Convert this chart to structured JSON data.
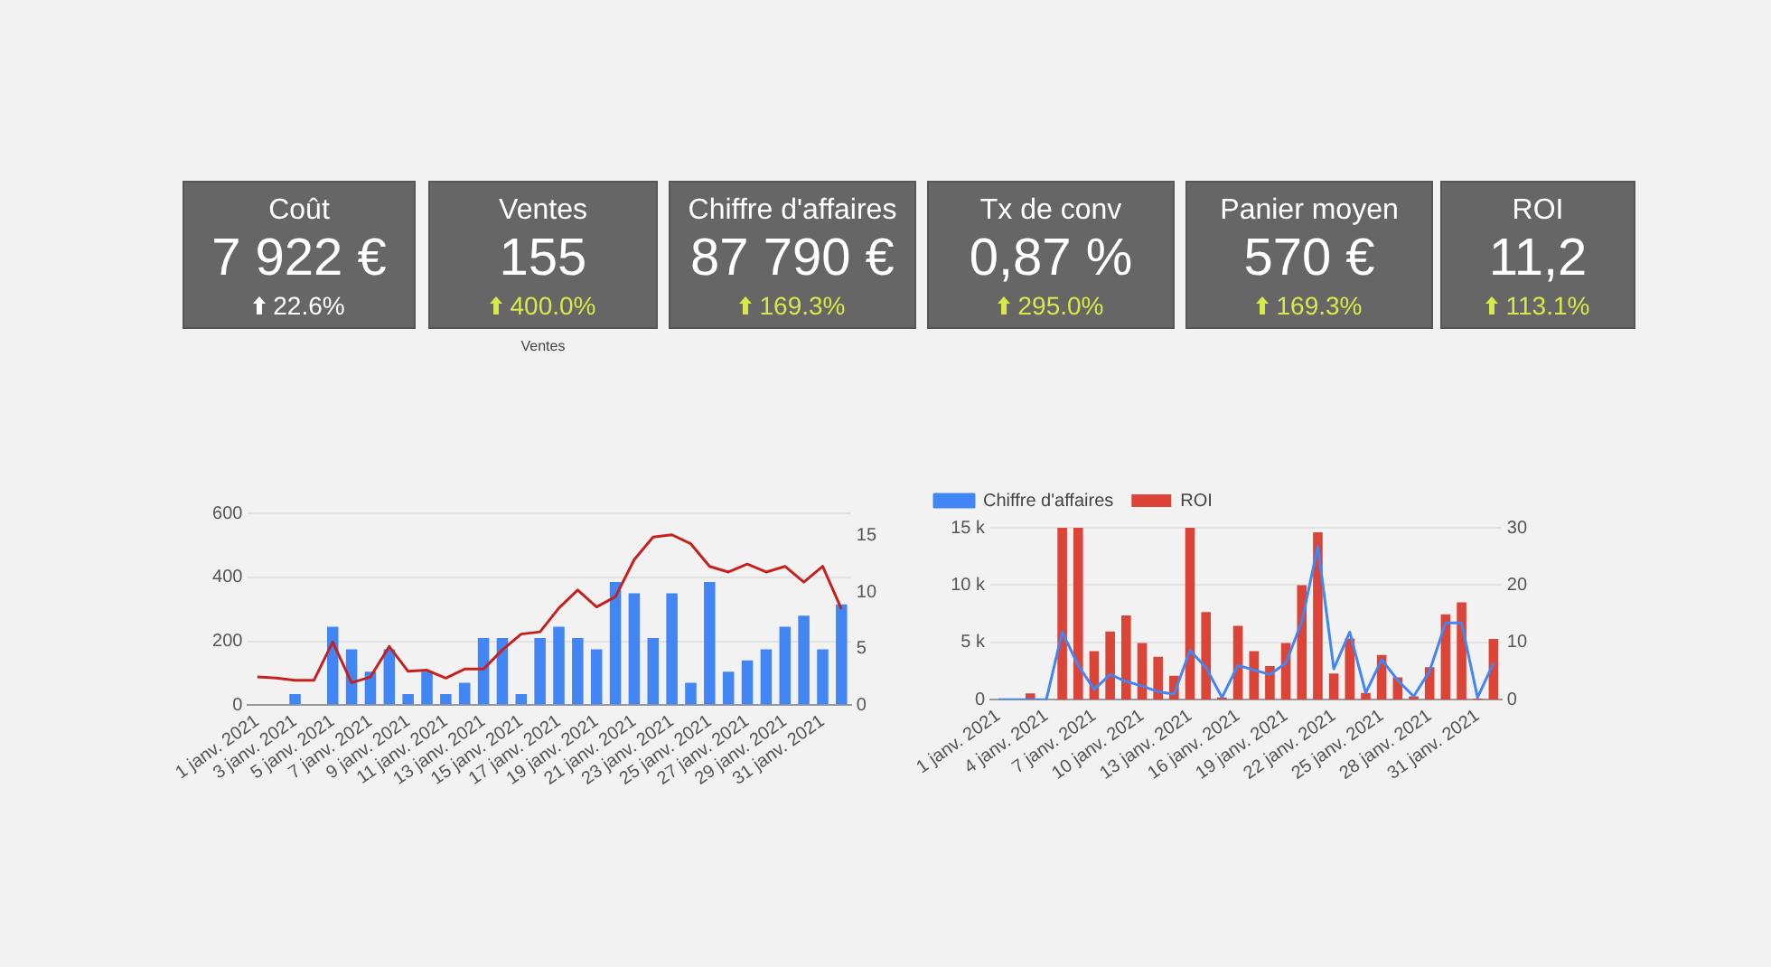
{
  "chart_data": [
    {
      "type": "other",
      "title": "Coût",
      "annotations": [
        "7 922 €",
        "22.6%"
      ],
      "color": "#ffffff"
    },
    {
      "type": "other",
      "title": "Ventes",
      "annotations": [
        "155",
        "400.0%",
        "Ventes"
      ],
      "color": "#d7e84a"
    },
    {
      "type": "other",
      "title": "Chiffre d'affaires",
      "annotations": [
        "87 790 €",
        "169.3%"
      ],
      "color": "#d7e84a"
    },
    {
      "type": "other",
      "title": "Tx de conv",
      "annotations": [
        "0,87 %",
        "295.0%"
      ],
      "color": "#d7e84a"
    },
    {
      "type": "other",
      "title": "Panier moyen",
      "annotations": [
        "570 €",
        "169.3%"
      ],
      "color": "#d7e84a"
    },
    {
      "type": "other",
      "title": "ROI",
      "annotations": [
        "11,2",
        "113.1%"
      ],
      "color": "#d7e84a"
    },
    {
      "type": "bar",
      "categories": [
        "1 janv. 2021",
        null,
        "3 janv. 2021",
        null,
        "5 janv. 2021",
        null,
        "7 janv. 2021",
        null,
        "9 janv. 2021",
        null,
        "11 janv. 2021",
        null,
        "13 janv. 2021",
        null,
        "15 janv. 2021",
        null,
        "17 janv. 2021",
        null,
        "19 janv. 2021",
        null,
        "21 janv. 2021",
        null,
        "23 janv. 2021",
        null,
        "25 janv. 2021",
        null,
        "27 janv. 2021",
        null,
        "29 janv. 2021",
        null,
        "31 janv. 2021",
        null
      ],
      "series": [
        {
          "type": "line",
          "axis": "y2",
          "color": "#c5221f",
          "values": [
            2.5,
            2.4,
            2.2,
            2.2,
            5.6,
            2.0,
            2.5,
            5.2,
            3.0,
            3.1,
            2.4,
            3.2,
            3.2,
            4.9,
            6.3,
            6.5,
            8.6,
            10.2,
            8.7,
            9.6,
            12.9,
            14.9,
            15.1,
            14.3,
            12.3,
            11.8,
            12.5,
            11.8,
            12.3,
            10.9,
            12.3,
            8.5
          ]
        },
        {
          "type": "bar",
          "color": "#4285f4",
          "values": [
            0,
            0,
            35,
            0,
            245,
            175,
            105,
            175,
            35,
            105,
            35,
            70,
            210,
            210,
            35,
            210,
            245,
            210,
            175,
            385,
            350,
            210,
            350,
            70,
            385,
            105,
            140,
            175,
            245,
            280,
            175,
            315
          ]
        }
      ],
      "ylim": [
        0,
        600
      ],
      "yticks": [
        0,
        200,
        400,
        600
      ],
      "y2lim": [
        0,
        17
      ],
      "y2ticks": [
        0,
        5,
        10,
        15
      ],
      "grid": "y",
      "marker": "none"
    },
    {
      "type": "bar",
      "categories": [
        "1 janv. 2021",
        null,
        null,
        "4 janv. 2021",
        null,
        null,
        "7 janv. 2021",
        null,
        null,
        "10 janv. 2021",
        null,
        null,
        "13 janv. 2021",
        null,
        null,
        "16 janv. 2021",
        null,
        null,
        "19 janv. 2021",
        null,
        null,
        "22 janv. 2021",
        null,
        null,
        "25 janv. 2021",
        null,
        null,
        "28 janv. 2021",
        null,
        null,
        "31 janv. 2021",
        null
      ],
      "series": [
        {
          "type": "line",
          "name": "Chiffre d'affaires",
          "color": "#4285f4",
          "values": [
            0,
            0,
            0,
            0,
            5900,
            3000,
            900,
            2200,
            1600,
            1200,
            700,
            500,
            4300,
            2800,
            200,
            3000,
            2600,
            2200,
            3200,
            6800,
            13400,
            2700,
            5900,
            600,
            3500,
            1700,
            300,
            2500,
            6700,
            6700,
            200,
            3200
          ]
        },
        {
          "type": "bar",
          "name": "ROI",
          "axis": "y2",
          "color": "#db4437",
          "values": [
            0,
            0,
            1.1,
            0,
            30,
            30,
            8.5,
            11.9,
            14.7,
            9.9,
            7.5,
            4.2,
            30,
            15.3,
            0.4,
            12.9,
            8.5,
            5.9,
            9.9,
            20,
            29.2,
            4.6,
            10.7,
            1.2,
            7.8,
            3.9,
            0.6,
            5.7,
            14.9,
            17,
            0.2,
            10.6
          ]
        }
      ],
      "ylim": [
        0,
        15000
      ],
      "yticks": [
        0,
        {
          "value": 5000,
          "label": "5 k"
        },
        {
          "value": 10000,
          "label": "10 k"
        },
        {
          "value": 15000,
          "label": "15 k"
        }
      ],
      "y2lim": [
        0,
        30
      ],
      "y2ticks": [
        0,
        10,
        20,
        30
      ],
      "grid": "y",
      "legend": "top",
      "marker": "none"
    }
  ]
}
